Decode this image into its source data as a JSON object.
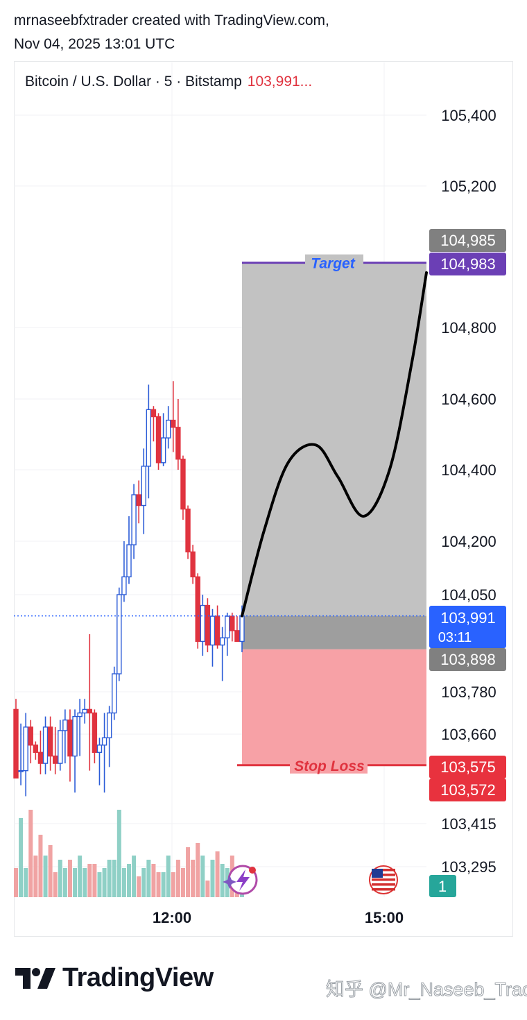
{
  "header": {
    "author_line": "mrnaseebfxtrader created with TradingView.com,",
    "date_line": "Nov 04, 2025 13:01 UTC"
  },
  "symbol": {
    "title": "Bitcoin / U.S. Dollar · 5 · Bitstamp",
    "price_preview": "103,991..."
  },
  "colors": {
    "up": "#2a5bd7",
    "down": "#e0333f",
    "vol_up": "#8fd0c6",
    "vol_down": "#f0a3a3",
    "target_line": "#6b3fb5",
    "target_text": "#2962ff",
    "stop_text": "#e0333f",
    "profit_zone": "#c2c2c2",
    "entry_zone": "#9e9e9e",
    "loss_zone": "#f7a1a6",
    "last_price_badge": "#2962ff",
    "grey_badge": "#808080",
    "red_badge": "#e8323e",
    "purple_badge": "#6b3fb5",
    "teal_badge": "#26a69a"
  },
  "chart_data": {
    "type": "candlestick",
    "instrument": "Bitcoin / U.S. Dollar",
    "interval": "5",
    "exchange": "Bitstamp",
    "y_ticks": [
      105400,
      105200,
      104800,
      104600,
      104400,
      104200,
      104050,
      103780,
      103660,
      103415,
      103295
    ],
    "ylim": [
      103170,
      105570
    ],
    "x_ticks": [
      "12:00",
      "15:00"
    ],
    "candles": [
      [
        103730,
        103760,
        103550,
        103540
      ],
      [
        103560,
        103690,
        103520,
        103560
      ],
      [
        103560,
        103720,
        103490,
        103680
      ],
      [
        103680,
        103700,
        103580,
        103630
      ],
      [
        103630,
        103640,
        103590,
        103610
      ],
      [
        103610,
        103670,
        103550,
        103580
      ],
      [
        103580,
        103710,
        103550,
        103680
      ],
      [
        103680,
        103710,
        103560,
        103600
      ],
      [
        103600,
        103680,
        103550,
        103580
      ],
      [
        103580,
        103700,
        103560,
        103670
      ],
      [
        103670,
        103730,
        103580,
        103700
      ],
      [
        103700,
        103730,
        103530,
        103600
      ],
      [
        103600,
        103730,
        103500,
        103710
      ],
      [
        103710,
        103760,
        103600,
        103720
      ],
      [
        103720,
        103760,
        103690,
        103730
      ],
      [
        103730,
        103940,
        103560,
        103720
      ],
      [
        103720,
        103730,
        103580,
        103610
      ],
      [
        103610,
        103650,
        103520,
        103630
      ],
      [
        103630,
        103720,
        103500,
        103650
      ],
      [
        103650,
        103740,
        103570,
        103720
      ],
      [
        103720,
        103850,
        103700,
        103830
      ],
      [
        103830,
        104070,
        103810,
        104050
      ],
      [
        104050,
        104200,
        104030,
        104100
      ],
      [
        104100,
        104270,
        104080,
        104190
      ],
      [
        104190,
        104360,
        104150,
        104330
      ],
      [
        104330,
        104370,
        104250,
        104300
      ],
      [
        104300,
        104460,
        104220,
        104410
      ],
      [
        104410,
        104640,
        104320,
        104570
      ],
      [
        104570,
        104580,
        104480,
        104550
      ],
      [
        104550,
        104560,
        104400,
        104420
      ],
      [
        104420,
        104560,
        104410,
        104490
      ],
      [
        104490,
        104580,
        104460,
        104540
      ],
      [
        104540,
        104650,
        104450,
        104520
      ],
      [
        104520,
        104600,
        104400,
        104430
      ],
      [
        104430,
        104440,
        104260,
        104290
      ],
      [
        104290,
        104300,
        104150,
        104170
      ],
      [
        104170,
        104190,
        104080,
        104100
      ],
      [
        104100,
        104110,
        103900,
        103920
      ],
      [
        103920,
        104050,
        103880,
        104020
      ],
      [
        104020,
        104040,
        103890,
        103910
      ],
      [
        103910,
        104010,
        103850,
        103990
      ],
      [
        103990,
        104020,
        103900,
        103910
      ],
      [
        103910,
        103960,
        103810,
        103930
      ],
      [
        103930,
        104000,
        103880,
        103990
      ],
      [
        103990,
        104000,
        103920,
        103950
      ],
      [
        103950,
        103990,
        103920,
        103920
      ],
      [
        103920,
        104020,
        103890,
        103991
      ]
    ],
    "volumes": [
      [
        0.14,
        0.38,
        0.14,
        0.42
      ],
      [
        0.2,
        0.3,
        0.2,
        0.25
      ],
      [
        0.12,
        0.18,
        0.14,
        0.18
      ],
      [
        0.14,
        0.2,
        0.14,
        0.16
      ],
      [
        0.16,
        0.12,
        0.14,
        0.18
      ],
      [
        0.18,
        0.42,
        0.14,
        0.16
      ],
      [
        0.2,
        0.1,
        0.14,
        0.18
      ],
      [
        0.16,
        0.12,
        0.12,
        0.2
      ],
      [
        0.12,
        0.18,
        0.14,
        0.24
      ],
      [
        0.18,
        0.26,
        0.2,
        0.08
      ],
      [
        0.18,
        0.22,
        0.16,
        0.14
      ],
      [
        0.2,
        0.06,
        0.14,
        0.28
      ],
      [
        0.45,
        0.05,
        0.05,
        0.25
      ]
    ],
    "last_price": 103991,
    "countdown": "03:11",
    "position": {
      "type": "long",
      "entry": 103898,
      "target": 104983,
      "stop": 103575,
      "target_label": "Target",
      "stop_label": "Stop Loss"
    },
    "projection_path": [
      [
        0.0,
        103991
      ],
      [
        0.12,
        104230
      ],
      [
        0.25,
        104420
      ],
      [
        0.4,
        104470
      ],
      [
        0.52,
        104380
      ],
      [
        0.66,
        104270
      ],
      [
        0.8,
        104400
      ],
      [
        0.92,
        104700
      ],
      [
        1.0,
        104955
      ]
    ],
    "price_badges": [
      {
        "value": "104,985",
        "kind": "grey"
      },
      {
        "value": "104,983",
        "kind": "purple"
      },
      {
        "value": "103,898",
        "kind": "grey"
      },
      {
        "value": "103,575",
        "kind": "red"
      },
      {
        "value": "103,572",
        "kind": "red"
      }
    ],
    "last_price_label": "103,991",
    "event_badge": "1"
  },
  "footer": {
    "brand": "TradingView",
    "watermark": "知乎 @Mr_Naseeb_Trader"
  }
}
